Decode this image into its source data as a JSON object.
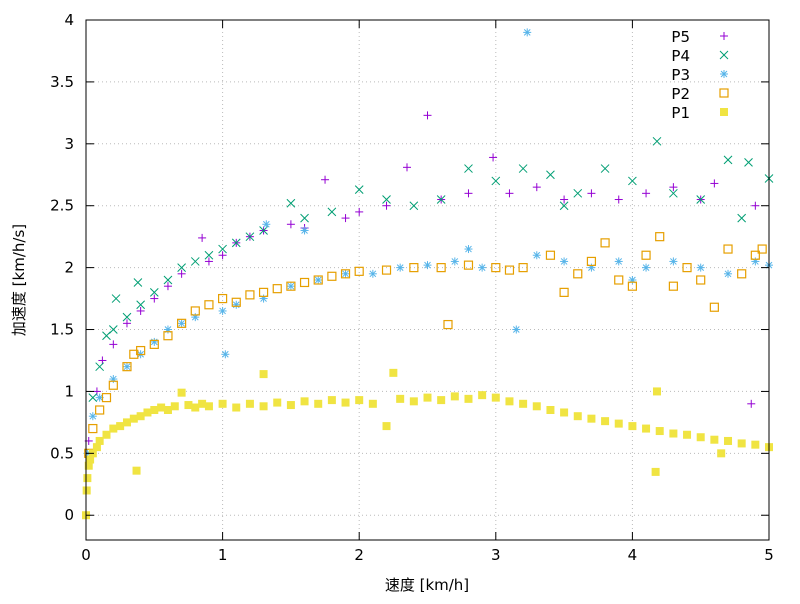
{
  "chart_data": {
    "type": "scatter",
    "title": "",
    "xlabel": "速度 [km/h]",
    "ylabel": "加速度 [km/h/s]",
    "xlim": [
      0,
      5
    ],
    "ylim": [
      -0.2,
      4
    ],
    "xticks": [
      0,
      1,
      2,
      3,
      4,
      5
    ],
    "yticks": [
      0,
      0.5,
      1,
      1.5,
      2,
      2.5,
      3,
      3.5,
      4
    ],
    "xtick_labels": [
      "0",
      "1",
      "2",
      "3",
      "4",
      "5"
    ],
    "ytick_labels": [
      "0",
      "0.5",
      "1",
      "1.5",
      "2",
      "2.5",
      "3",
      "3.5",
      "4"
    ],
    "grid": true,
    "legend_position": "top-right",
    "series": [
      {
        "name": "P5",
        "marker": "plus",
        "color": "#9400d3",
        "points": [
          [
            0.02,
            0.6
          ],
          [
            0.08,
            1.0
          ],
          [
            0.12,
            1.25
          ],
          [
            0.2,
            1.38
          ],
          [
            0.3,
            1.55
          ],
          [
            0.4,
            1.65
          ],
          [
            0.5,
            1.75
          ],
          [
            0.6,
            1.85
          ],
          [
            0.7,
            1.95
          ],
          [
            0.85,
            2.24
          ],
          [
            0.9,
            2.05
          ],
          [
            1.0,
            2.1
          ],
          [
            1.1,
            2.2
          ],
          [
            1.2,
            2.25
          ],
          [
            1.3,
            2.3
          ],
          [
            1.5,
            2.35
          ],
          [
            1.6,
            2.32
          ],
          [
            1.75,
            2.71
          ],
          [
            1.9,
            2.4
          ],
          [
            2.0,
            2.45
          ],
          [
            2.2,
            2.5
          ],
          [
            2.35,
            2.81
          ],
          [
            2.5,
            3.23
          ],
          [
            2.6,
            2.55
          ],
          [
            2.8,
            2.6
          ],
          [
            2.98,
            2.89
          ],
          [
            3.1,
            2.6
          ],
          [
            3.3,
            2.65
          ],
          [
            3.5,
            2.55
          ],
          [
            3.7,
            2.6
          ],
          [
            3.9,
            2.55
          ],
          [
            4.1,
            2.6
          ],
          [
            4.3,
            2.65
          ],
          [
            4.5,
            2.55
          ],
          [
            4.6,
            2.68
          ],
          [
            4.87,
            0.9
          ],
          [
            4.9,
            2.5
          ]
        ]
      },
      {
        "name": "P4",
        "marker": "cross",
        "color": "#009e73",
        "points": [
          [
            0.05,
            0.95
          ],
          [
            0.1,
            1.2
          ],
          [
            0.15,
            1.45
          ],
          [
            0.2,
            1.5
          ],
          [
            0.22,
            1.75
          ],
          [
            0.3,
            1.6
          ],
          [
            0.38,
            1.88
          ],
          [
            0.4,
            1.7
          ],
          [
            0.5,
            1.8
          ],
          [
            0.6,
            1.9
          ],
          [
            0.7,
            2.0
          ],
          [
            0.8,
            2.05
          ],
          [
            0.9,
            2.1
          ],
          [
            1.0,
            2.15
          ],
          [
            1.1,
            2.2
          ],
          [
            1.2,
            2.25
          ],
          [
            1.3,
            2.3
          ],
          [
            1.5,
            2.52
          ],
          [
            1.6,
            2.4
          ],
          [
            1.8,
            2.45
          ],
          [
            2.0,
            2.63
          ],
          [
            2.2,
            2.55
          ],
          [
            2.4,
            2.5
          ],
          [
            2.6,
            2.55
          ],
          [
            2.8,
            2.8
          ],
          [
            3.0,
            2.7
          ],
          [
            3.2,
            2.8
          ],
          [
            3.4,
            2.75
          ],
          [
            3.5,
            2.5
          ],
          [
            3.6,
            2.6
          ],
          [
            3.8,
            2.8
          ],
          [
            4.0,
            2.7
          ],
          [
            4.18,
            3.02
          ],
          [
            4.3,
            2.6
          ],
          [
            4.5,
            2.55
          ],
          [
            4.7,
            2.87
          ],
          [
            4.8,
            2.4
          ],
          [
            4.85,
            2.85
          ],
          [
            5.0,
            2.72
          ]
        ]
      },
      {
        "name": "P3",
        "marker": "star",
        "color": "#56b4e9",
        "points": [
          [
            0.01,
            0.5
          ],
          [
            0.05,
            0.8
          ],
          [
            0.1,
            0.95
          ],
          [
            0.2,
            1.1
          ],
          [
            0.3,
            1.2
          ],
          [
            0.4,
            1.3
          ],
          [
            0.5,
            1.4
          ],
          [
            0.6,
            1.5
          ],
          [
            0.7,
            1.55
          ],
          [
            0.8,
            1.6
          ],
          [
            1.0,
            1.65
          ],
          [
            1.02,
            1.3
          ],
          [
            1.1,
            1.7
          ],
          [
            1.3,
            1.75
          ],
          [
            1.32,
            2.35
          ],
          [
            1.5,
            1.85
          ],
          [
            1.6,
            2.3
          ],
          [
            1.7,
            1.9
          ],
          [
            1.9,
            1.95
          ],
          [
            2.1,
            1.95
          ],
          [
            2.3,
            2.0
          ],
          [
            2.5,
            2.02
          ],
          [
            2.7,
            2.05
          ],
          [
            2.8,
            2.15
          ],
          [
            2.9,
            2.0
          ],
          [
            3.15,
            1.5
          ],
          [
            3.23,
            3.9
          ],
          [
            3.3,
            2.1
          ],
          [
            3.5,
            2.05
          ],
          [
            3.7,
            2.0
          ],
          [
            3.9,
            2.05
          ],
          [
            4.0,
            1.9
          ],
          [
            4.1,
            2.0
          ],
          [
            4.3,
            2.05
          ],
          [
            4.5,
            2.0
          ],
          [
            4.7,
            1.95
          ],
          [
            4.9,
            2.05
          ],
          [
            5.0,
            2.02
          ]
        ]
      },
      {
        "name": "P2",
        "marker": "open-square",
        "color": "#e69f00",
        "points": [
          [
            0.02,
            0.5
          ],
          [
            0.05,
            0.7
          ],
          [
            0.1,
            0.85
          ],
          [
            0.15,
            0.95
          ],
          [
            0.2,
            1.05
          ],
          [
            0.3,
            1.2
          ],
          [
            0.35,
            1.3
          ],
          [
            0.4,
            1.33
          ],
          [
            0.5,
            1.38
          ],
          [
            0.6,
            1.45
          ],
          [
            0.7,
            1.55
          ],
          [
            0.8,
            1.65
          ],
          [
            0.9,
            1.7
          ],
          [
            1.0,
            1.75
          ],
          [
            1.1,
            1.72
          ],
          [
            1.2,
            1.78
          ],
          [
            1.3,
            1.8
          ],
          [
            1.4,
            1.83
          ],
          [
            1.5,
            1.85
          ],
          [
            1.6,
            1.88
          ],
          [
            1.7,
            1.9
          ],
          [
            1.8,
            1.93
          ],
          [
            1.9,
            1.95
          ],
          [
            2.0,
            1.97
          ],
          [
            2.2,
            1.98
          ],
          [
            2.4,
            2.0
          ],
          [
            2.6,
            2.0
          ],
          [
            2.65,
            1.54
          ],
          [
            2.8,
            2.02
          ],
          [
            3.0,
            2.0
          ],
          [
            3.1,
            1.98
          ],
          [
            3.2,
            2.0
          ],
          [
            3.4,
            2.1
          ],
          [
            3.5,
            1.8
          ],
          [
            3.6,
            1.95
          ],
          [
            3.7,
            2.05
          ],
          [
            3.8,
            2.2
          ],
          [
            3.9,
            1.9
          ],
          [
            4.0,
            1.85
          ],
          [
            4.1,
            2.1
          ],
          [
            4.2,
            2.25
          ],
          [
            4.3,
            1.85
          ],
          [
            4.4,
            2.0
          ],
          [
            4.5,
            1.9
          ],
          [
            4.6,
            1.68
          ],
          [
            4.7,
            2.15
          ],
          [
            4.8,
            1.95
          ],
          [
            4.9,
            2.1
          ],
          [
            4.95,
            2.15
          ]
        ]
      },
      {
        "name": "P1",
        "marker": "filled-square",
        "color": "#f0e442",
        "points": [
          [
            0,
            0.0
          ],
          [
            0.005,
            0.2
          ],
          [
            0.01,
            0.3
          ],
          [
            0.02,
            0.4
          ],
          [
            0.03,
            0.45
          ],
          [
            0.05,
            0.5
          ],
          [
            0.08,
            0.55
          ],
          [
            0.1,
            0.6
          ],
          [
            0.15,
            0.65
          ],
          [
            0.2,
            0.7
          ],
          [
            0.25,
            0.72
          ],
          [
            0.3,
            0.75
          ],
          [
            0.35,
            0.78
          ],
          [
            0.37,
            0.36
          ],
          [
            0.4,
            0.8
          ],
          [
            0.45,
            0.83
          ],
          [
            0.5,
            0.85
          ],
          [
            0.55,
            0.87
          ],
          [
            0.6,
            0.85
          ],
          [
            0.65,
            0.88
          ],
          [
            0.7,
            0.99
          ],
          [
            0.75,
            0.89
          ],
          [
            0.8,
            0.87
          ],
          [
            0.85,
            0.9
          ],
          [
            0.9,
            0.88
          ],
          [
            1.0,
            0.9
          ],
          [
            1.1,
            0.87
          ],
          [
            1.2,
            0.9
          ],
          [
            1.3,
            1.14
          ],
          [
            1.3,
            0.88
          ],
          [
            1.4,
            0.91
          ],
          [
            1.5,
            0.89
          ],
          [
            1.6,
            0.92
          ],
          [
            1.7,
            0.9
          ],
          [
            1.8,
            0.93
          ],
          [
            1.9,
            0.91
          ],
          [
            2.0,
            0.93
          ],
          [
            2.1,
            0.9
          ],
          [
            2.2,
            0.72
          ],
          [
            2.25,
            1.15
          ],
          [
            2.3,
            0.94
          ],
          [
            2.4,
            0.92
          ],
          [
            2.5,
            0.95
          ],
          [
            2.6,
            0.93
          ],
          [
            2.7,
            0.96
          ],
          [
            2.8,
            0.94
          ],
          [
            2.9,
            0.97
          ],
          [
            3.0,
            0.95
          ],
          [
            3.1,
            0.92
          ],
          [
            3.2,
            0.9
          ],
          [
            3.3,
            0.88
          ],
          [
            3.4,
            0.85
          ],
          [
            3.5,
            0.83
          ],
          [
            3.6,
            0.8
          ],
          [
            3.7,
            0.78
          ],
          [
            3.8,
            0.76
          ],
          [
            3.9,
            0.74
          ],
          [
            4.0,
            0.72
          ],
          [
            4.1,
            0.7
          ],
          [
            4.17,
            0.35
          ],
          [
            4.18,
            1.0
          ],
          [
            4.2,
            0.68
          ],
          [
            4.3,
            0.66
          ],
          [
            4.4,
            0.65
          ],
          [
            4.5,
            0.63
          ],
          [
            4.6,
            0.61
          ],
          [
            4.65,
            0.5
          ],
          [
            4.7,
            0.6
          ],
          [
            4.8,
            0.58
          ],
          [
            4.9,
            0.57
          ],
          [
            5.0,
            0.55
          ]
        ]
      }
    ]
  }
}
